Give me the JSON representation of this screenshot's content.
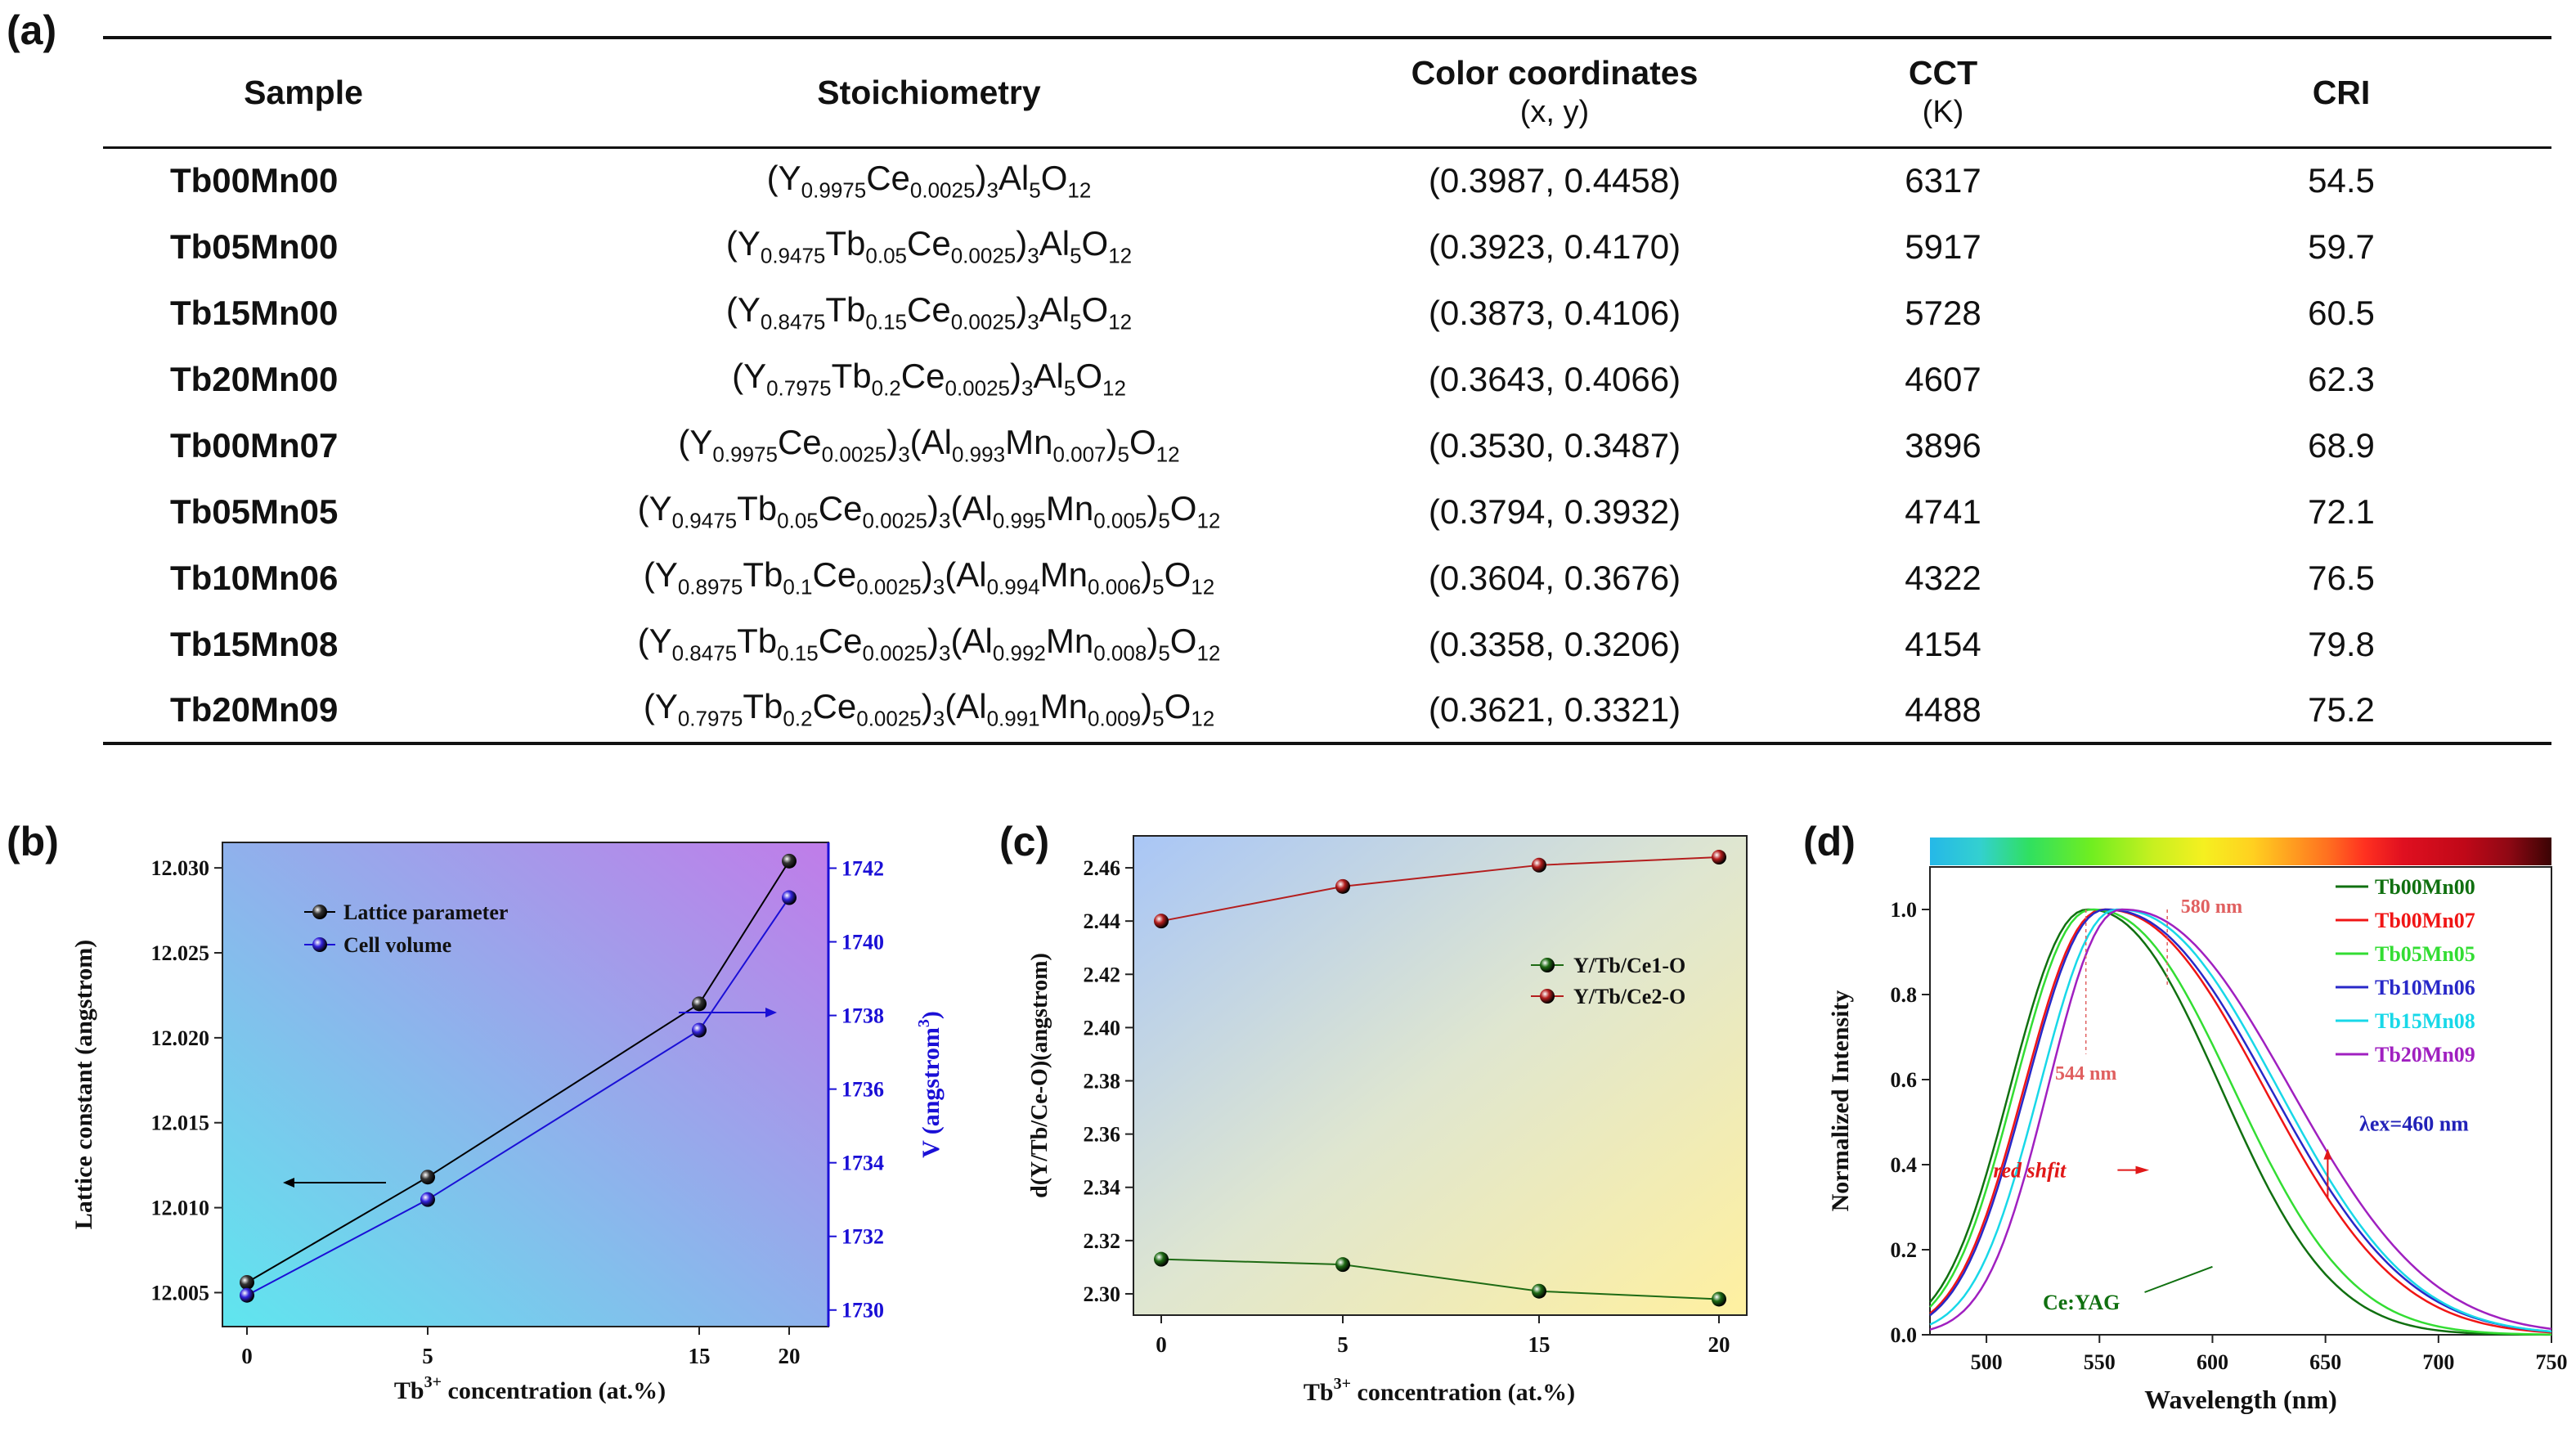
{
  "panels": {
    "a": "(a)",
    "b": "(b)",
    "c": "(c)",
    "d": "(d)"
  },
  "table": {
    "headers": {
      "sample": "Sample",
      "stoichiometry": "Stoichiometry",
      "color": "Color coordinates",
      "color_sub": "(x, y)",
      "cct": "CCT",
      "cct_sub": "(K)",
      "cri": "CRI"
    },
    "rows": [
      {
        "sample": "Tb00Mn00",
        "formula": [
          [
            "(Y",
            ""
          ],
          [
            "0.9975",
            "s"
          ],
          [
            "Ce",
            ""
          ],
          [
            "0.0025",
            "s"
          ],
          [
            ")",
            ""
          ],
          [
            "3",
            "s"
          ],
          [
            "Al",
            ""
          ],
          [
            "5",
            "s"
          ],
          [
            "O",
            ""
          ],
          [
            "12",
            "s"
          ]
        ],
        "color": "(0.3987, 0.4458)",
        "cct": "6317",
        "cri": "54.5"
      },
      {
        "sample": "Tb05Mn00",
        "formula": [
          [
            "(Y",
            ""
          ],
          [
            "0.9475",
            "s"
          ],
          [
            "Tb",
            ""
          ],
          [
            "0.05",
            "s"
          ],
          [
            "Ce",
            ""
          ],
          [
            "0.0025",
            "s"
          ],
          [
            ")",
            ""
          ],
          [
            "3",
            "s"
          ],
          [
            "Al",
            ""
          ],
          [
            "5",
            "s"
          ],
          [
            "O",
            ""
          ],
          [
            "12",
            "s"
          ]
        ],
        "color": "(0.3923, 0.4170)",
        "cct": "5917",
        "cri": "59.7"
      },
      {
        "sample": "Tb15Mn00",
        "formula": [
          [
            "(Y",
            ""
          ],
          [
            "0.8475",
            "s"
          ],
          [
            "Tb",
            ""
          ],
          [
            "0.15",
            "s"
          ],
          [
            "Ce",
            ""
          ],
          [
            "0.0025",
            "s"
          ],
          [
            ")",
            ""
          ],
          [
            "3",
            "s"
          ],
          [
            "Al",
            ""
          ],
          [
            "5",
            "s"
          ],
          [
            "O",
            ""
          ],
          [
            "12",
            "s"
          ]
        ],
        "color": "(0.3873, 0.4106)",
        "cct": "5728",
        "cri": "60.5"
      },
      {
        "sample": "Tb20Mn00",
        "formula": [
          [
            "(Y",
            ""
          ],
          [
            "0.7975",
            "s"
          ],
          [
            "Tb",
            ""
          ],
          [
            "0.2",
            "s"
          ],
          [
            "Ce",
            ""
          ],
          [
            "0.0025",
            "s"
          ],
          [
            ")",
            ""
          ],
          [
            "3",
            "s"
          ],
          [
            "Al",
            ""
          ],
          [
            "5",
            "s"
          ],
          [
            "O",
            ""
          ],
          [
            "12",
            "s"
          ]
        ],
        "color": "(0.3643, 0.4066)",
        "cct": "4607",
        "cri": "62.3"
      },
      {
        "sample": "Tb00Mn07",
        "formula": [
          [
            "(Y",
            ""
          ],
          [
            "0.9975",
            "s"
          ],
          [
            "Ce",
            ""
          ],
          [
            "0.0025",
            "s"
          ],
          [
            ")",
            ""
          ],
          [
            "3",
            "s"
          ],
          [
            "(Al",
            ""
          ],
          [
            "0.993",
            "s"
          ],
          [
            "Mn",
            ""
          ],
          [
            "0.007",
            "s"
          ],
          [
            ")",
            ""
          ],
          [
            "5",
            "s"
          ],
          [
            "O",
            ""
          ],
          [
            "12",
            "s"
          ]
        ],
        "color": "(0.3530, 0.3487)",
        "cct": "3896",
        "cri": "68.9"
      },
      {
        "sample": "Tb05Mn05",
        "formula": [
          [
            "(Y",
            ""
          ],
          [
            "0.9475",
            "s"
          ],
          [
            "Tb",
            ""
          ],
          [
            "0.05",
            "s"
          ],
          [
            "Ce",
            ""
          ],
          [
            "0.0025",
            "s"
          ],
          [
            ")",
            ""
          ],
          [
            "3",
            "s"
          ],
          [
            "(Al",
            ""
          ],
          [
            "0.995",
            "s"
          ],
          [
            "Mn",
            ""
          ],
          [
            "0.005",
            "s"
          ],
          [
            ")",
            ""
          ],
          [
            "5",
            "s"
          ],
          [
            "O",
            ""
          ],
          [
            "12",
            "s"
          ]
        ],
        "color": "(0.3794, 0.3932)",
        "cct": "4741",
        "cri": "72.1"
      },
      {
        "sample": "Tb10Mn06",
        "formula": [
          [
            "(Y",
            ""
          ],
          [
            "0.8975",
            "s"
          ],
          [
            "Tb",
            ""
          ],
          [
            "0.1",
            "s"
          ],
          [
            "Ce",
            ""
          ],
          [
            "0.0025",
            "s"
          ],
          [
            ")",
            ""
          ],
          [
            "3",
            "s"
          ],
          [
            "(Al",
            ""
          ],
          [
            "0.994",
            "s"
          ],
          [
            "Mn",
            ""
          ],
          [
            "0.006",
            "s"
          ],
          [
            ")",
            ""
          ],
          [
            "5",
            "s"
          ],
          [
            "O",
            ""
          ],
          [
            "12",
            "s"
          ]
        ],
        "color": "(0.3604, 0.3676)",
        "cct": "4322",
        "cri": "76.5"
      },
      {
        "sample": "Tb15Mn08",
        "formula": [
          [
            "(Y",
            ""
          ],
          [
            "0.8475",
            "s"
          ],
          [
            "Tb",
            ""
          ],
          [
            "0.15",
            "s"
          ],
          [
            "Ce",
            ""
          ],
          [
            "0.0025",
            "s"
          ],
          [
            ")",
            ""
          ],
          [
            "3",
            "s"
          ],
          [
            "(Al",
            ""
          ],
          [
            "0.992",
            "s"
          ],
          [
            "Mn",
            ""
          ],
          [
            "0.008",
            "s"
          ],
          [
            ")",
            ""
          ],
          [
            "5",
            "s"
          ],
          [
            "O",
            ""
          ],
          [
            "12",
            "s"
          ]
        ],
        "color": "(0.3358, 0.3206)",
        "cct": "4154",
        "cri": "79.8"
      },
      {
        "sample": "Tb20Mn09",
        "formula": [
          [
            "(Y",
            ""
          ],
          [
            "0.7975",
            "s"
          ],
          [
            "Tb",
            ""
          ],
          [
            "0.2",
            "s"
          ],
          [
            "Ce",
            ""
          ],
          [
            "0.0025",
            "s"
          ],
          [
            ")",
            ""
          ],
          [
            "3",
            "s"
          ],
          [
            "(Al",
            ""
          ],
          [
            "0.991",
            "s"
          ],
          [
            "Mn",
            ""
          ],
          [
            "0.009",
            "s"
          ],
          [
            ")",
            ""
          ],
          [
            "5",
            "s"
          ],
          [
            "O",
            ""
          ],
          [
            "12",
            "s"
          ]
        ],
        "color": "(0.3621, 0.3321)",
        "cct": "4488",
        "cri": "75.2"
      }
    ]
  },
  "chart_data": [
    {
      "id": "b",
      "type": "line",
      "title": "",
      "xlabel": "Tb",
      "xlabel_sup": "3+",
      "xlabel_rest": " concentration (at.%)",
      "ylabel": "Lattice constant (angstrom)",
      "y2label": "V (angstrom",
      "y2label_sup": "3",
      "y2label_end": ")",
      "categories": [
        "0",
        "5",
        "15",
        "20"
      ],
      "ylim": [
        12.003,
        12.0315
      ],
      "yticks": [
        "12.005",
        "12.010",
        "12.015",
        "12.020",
        "12.025",
        "12.030"
      ],
      "y2lim": [
        1729.55,
        1742.7
      ],
      "y2ticks": [
        "1730",
        "1732",
        "1734",
        "1736",
        "1738",
        "1740",
        "1742"
      ],
      "series": [
        {
          "name": "Lattice parameter",
          "axis": "left",
          "color": "#000000",
          "values": [
            12.0056,
            12.0118,
            12.022,
            12.0304
          ]
        },
        {
          "name": "Cell volume",
          "axis": "right",
          "color": "#1a0fd6",
          "values": [
            1730.4,
            1733.0,
            1737.6,
            1741.2
          ]
        }
      ],
      "legend_position": "top-left",
      "background": [
        "#5fe6ee",
        "#c07ce9"
      ]
    },
    {
      "id": "c",
      "type": "line",
      "title": "",
      "xlabel": "Tb",
      "xlabel_sup": "3+",
      "xlabel_rest": " concentration (at.%)",
      "ylabel": "d(Y/Tb/Ce-O)(angstrom)",
      "categories": [
        "0",
        "5",
        "15",
        "20"
      ],
      "ylim": [
        2.292,
        2.472
      ],
      "yticks": [
        "2.30",
        "2.32",
        "2.34",
        "2.36",
        "2.38",
        "2.40",
        "2.42",
        "2.44",
        "2.46"
      ],
      "series": [
        {
          "name": "Y/Tb/Ce1-O",
          "color": "#1e6b14",
          "values": [
            2.313,
            2.311,
            2.301,
            2.298
          ]
        },
        {
          "name": "Y/Tb/Ce2-O",
          "color": "#b41e1e",
          "values": [
            2.44,
            2.453,
            2.461,
            2.464
          ]
        }
      ],
      "legend_position": "center-right",
      "background": [
        "#a9c6f6",
        "#fff0a0"
      ]
    },
    {
      "id": "d",
      "type": "line",
      "title": "",
      "xlabel": "Wavelength (nm)",
      "ylabel": "Normalized Intensity",
      "xlim": [
        475,
        750
      ],
      "xticks": [
        "500",
        "550",
        "600",
        "650",
        "700",
        "750"
      ],
      "ylim": [
        0.0,
        1.1
      ],
      "yticks": [
        "0.0",
        "0.2",
        "0.4",
        "0.6",
        "0.8",
        "1.0"
      ],
      "series": [
        {
          "name": "Tb00Mn00",
          "color": "#107010",
          "peak": 545,
          "sl": 40,
          "sr": 68
        },
        {
          "name": "Tb00Mn07",
          "color": "#f01515",
          "peak": 552,
          "sl": 41,
          "sr": 82
        },
        {
          "name": "Tb05Mn05",
          "color": "#33dd33",
          "peak": 547,
          "sl": 40,
          "sr": 72
        },
        {
          "name": "Tb10Mn06",
          "color": "#2828c8",
          "peak": 553,
          "sl": 41,
          "sr": 84
        },
        {
          "name": "Tb15Mn08",
          "color": "#18d8e8",
          "peak": 558,
          "sl": 40,
          "sr": 82
        },
        {
          "name": "Tb20Mn09",
          "color": "#a020c0",
          "peak": 560,
          "sl": 38,
          "sr": 86
        }
      ],
      "annotations": {
        "peak1": "544 nm",
        "peak2": "580 nm",
        "shift": "red shfit",
        "cey": "Ce:YAG",
        "lex": "λex=460 nm"
      },
      "legend_position": "top-right"
    }
  ]
}
